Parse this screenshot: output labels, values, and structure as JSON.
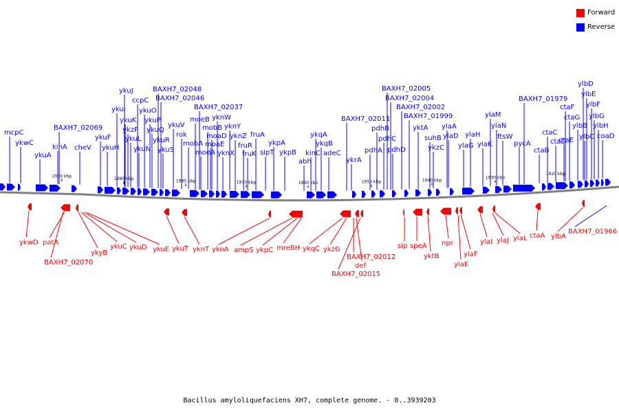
{
  "legend": [
    {
      "label": "Forward",
      "color": "#ff0000"
    },
    {
      "label": "Reverse",
      "color": "#0000ff"
    }
  ],
  "caption": "Bacillus amyloliquefaciens XH7, complete genome. - 0..3939203",
  "colors": {
    "forward": "#ff0000",
    "reverse": "#0000ff",
    "backbone": "#808080"
  },
  "ticks": [
    "2000 kbp",
    "1990 kbp",
    "1980 kbp",
    "1970 kbp",
    "1960 kbp",
    "1950 kbp",
    "1940 kbp",
    "1930 kbp",
    "1920 kbp"
  ],
  "reverse_labels": [
    "mcpC",
    "ykwC",
    "ykuA",
    "kinA",
    "BAXH7_02069",
    "cheV",
    "ykuF",
    "ykuH",
    "ykuI",
    "ykuJ",
    "ykuK",
    "ccpC",
    "ykzF",
    "ykuL",
    "ykuO",
    "ykuN",
    "ykuP",
    "ykuQ",
    "ykuR",
    "ykuS",
    "BAXH7_02048",
    "BAXH7_02046",
    "ykuV",
    "rok",
    "mobA",
    "moeB",
    "mobB",
    "moeA",
    "moaE",
    "moaD",
    "BAXH7_02037",
    "yknW",
    "yknY",
    "yknX",
    "yknZ",
    "fruR",
    "fruK",
    "fruA",
    "sipT",
    "ykpA",
    "ykpB",
    "abh",
    "kinC",
    "ykqA",
    "ykqB",
    "adeC",
    "ykrA",
    "BAXH7_02011",
    "pdhA",
    "pdhB",
    "pdhC",
    "pdhD",
    "BAXH7_02005",
    "BAXH7_02004",
    "BAXH7_02002",
    "ykzC",
    "suhB",
    "BAXH7_01999",
    "yktA",
    "ylaA",
    "ylaD",
    "ylaG",
    "ylaH",
    "ylaK",
    "ylaM",
    "ylaN",
    "ftsW",
    "pycA",
    "BAXH7_01979",
    "ctaB",
    "ctaC",
    "ctaD",
    "ctaF",
    "ctaG",
    "ctaE",
    "ylbB",
    "ylbC",
    "ylbD",
    "ylbE",
    "ylbF",
    "ylbG",
    "ylbH",
    "coaD"
  ],
  "forward_labels": [
    "ykwD",
    "patA",
    "BAXH7_02070",
    "ykyB",
    "ykuC",
    "ykuD",
    "ykuE",
    "ykuT",
    "yknT",
    "ykoA",
    "ampS",
    "ykpC",
    "mreBH",
    "ykqC",
    "ykzG",
    "BAXH7_02012",
    "def",
    "BAXH7_02015",
    "sip",
    "speA",
    "yktB",
    "npr",
    "ylaE",
    "ylaF",
    "ylaI",
    "ylaJ",
    "ylaL",
    "ctaA",
    "ylbA",
    "BAXH7_01966"
  ]
}
